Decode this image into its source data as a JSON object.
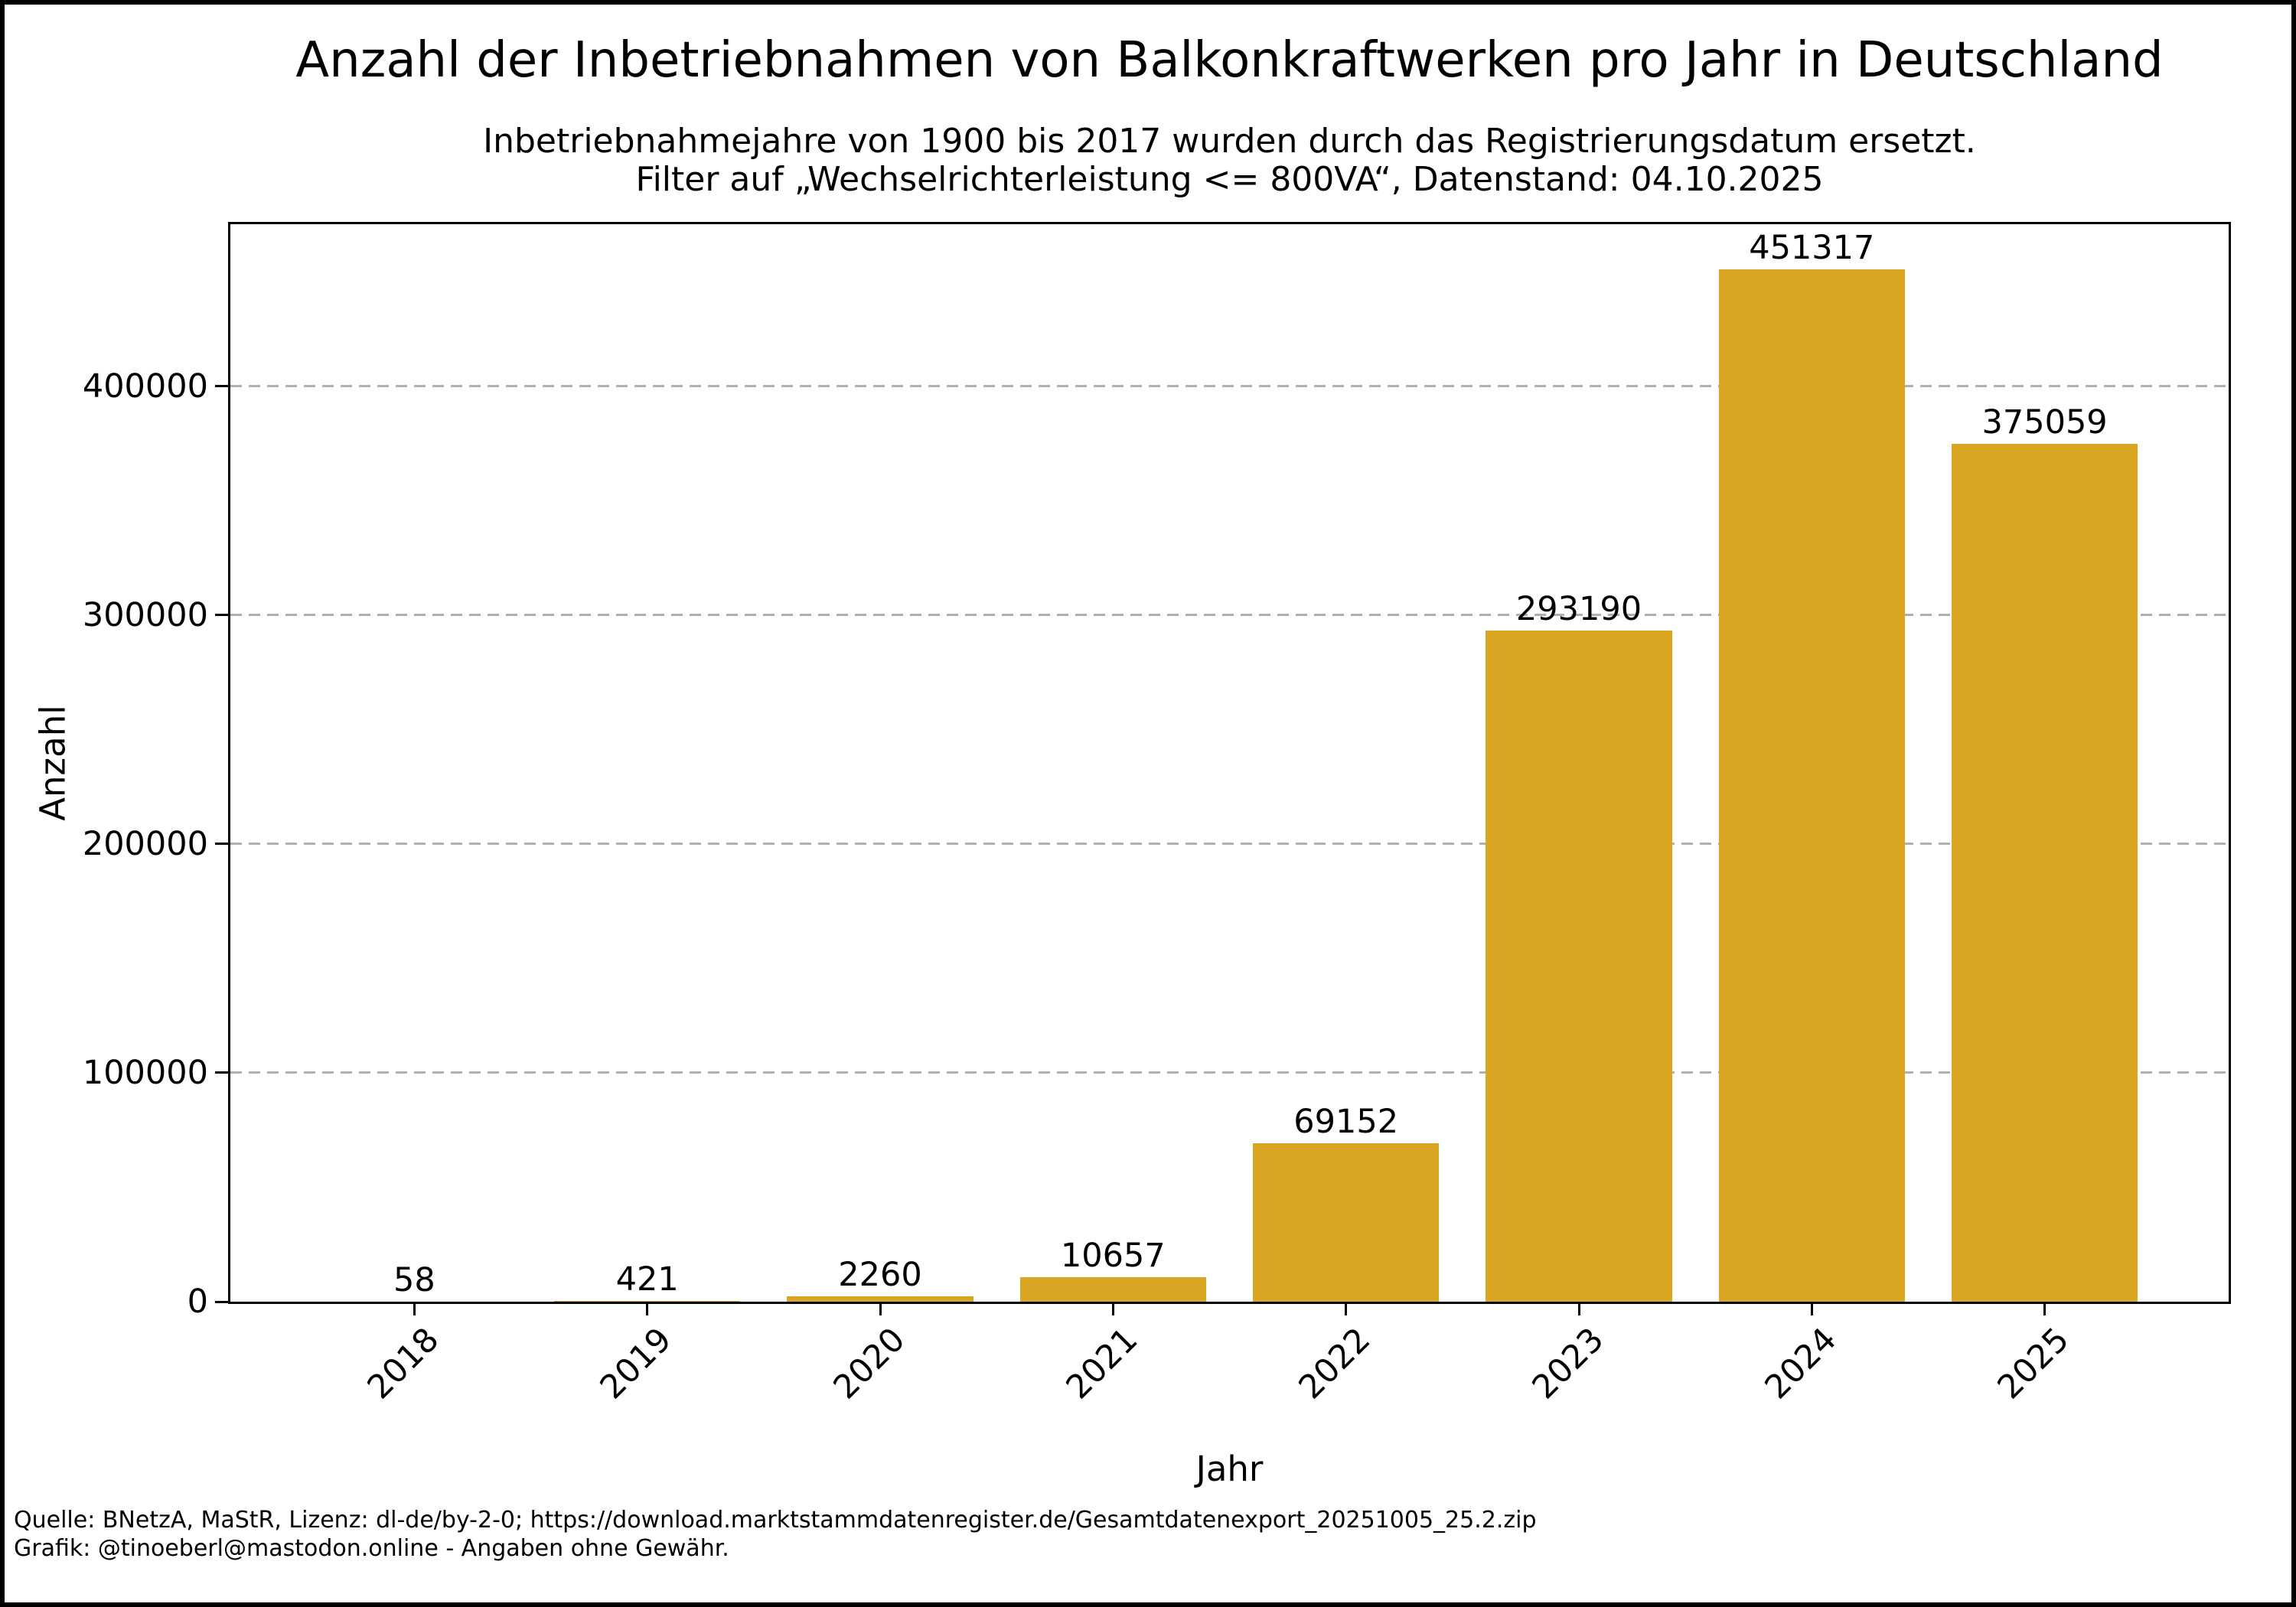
{
  "chart_data": {
    "type": "bar",
    "title": "Anzahl der Inbetriebnahmen von Balkonkraftwerken pro Jahr in Deutschland",
    "subtitle_line1": "Inbetriebnahmejahre von 1900 bis 2017 wurden durch das Registrierungsdatum ersetzt.",
    "subtitle_line2": "Filter auf „Wechselrichterleistung <= 800VA“, Datenstand: 04.10.2025",
    "categories": [
      "2018",
      "2019",
      "2020",
      "2021",
      "2022",
      "2023",
      "2024",
      "2025"
    ],
    "values": [
      58,
      421,
      2260,
      10657,
      69152,
      293190,
      451317,
      375059
    ],
    "xlabel": "Jahr",
    "ylabel": "Anzahl",
    "yticks": [
      0,
      100000,
      200000,
      300000,
      400000
    ],
    "ylim": [
      0,
      470900
    ],
    "bar_color": "#DAA520",
    "grid_color": "#b0b0b0",
    "grid_style": "dashed-horizontal",
    "legend": "none",
    "value_labels": true
  },
  "footer": {
    "line1": "Quelle: BNetzA, MaStR, Lizenz: dl-de/by-2-0; https://download.marktstammdatenregister.de/Gesamtdatenexport_20251005_25.2.zip",
    "line2": "Grafik: @tinoeberl@mastodon.online - Angaben ohne Gewähr."
  }
}
